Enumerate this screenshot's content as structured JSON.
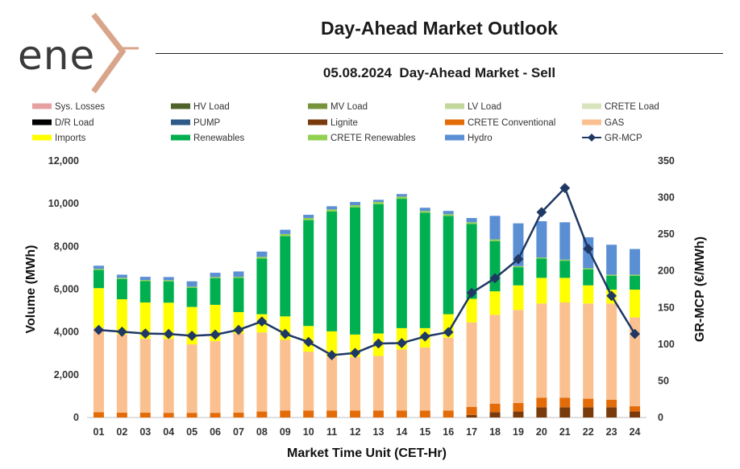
{
  "header": {
    "logo_text": "ene",
    "title": "Day-Ahead Market Outlook",
    "subtitle": "05.08.2024  Day-Ahead Market - Sell"
  },
  "chart_data": {
    "type": "bar",
    "stacked": true,
    "xlabel": "Market Time Unit (CET-Hr)",
    "ylabel": "Volume (MWh)",
    "y2label": "GR-MCP (€/MWh)",
    "ylim": [
      0,
      12000
    ],
    "y2lim": [
      0,
      350
    ],
    "yticks": [
      "0",
      "2,000",
      "4,000",
      "6,000",
      "8,000",
      "10,000",
      "12,000"
    ],
    "y2ticks": [
      "0",
      "50",
      "100",
      "150",
      "200",
      "250",
      "300",
      "350"
    ],
    "categories": [
      "01",
      "02",
      "03",
      "04",
      "05",
      "06",
      "07",
      "08",
      "09",
      "10",
      "11",
      "12",
      "13",
      "14",
      "15",
      "16",
      "17",
      "18",
      "19",
      "20",
      "21",
      "22",
      "23",
      "24"
    ],
    "series": [
      {
        "name": "Sys. Losses",
        "kind": "bar",
        "color": "#e6a0a0",
        "values": [
          0,
          0,
          0,
          0,
          0,
          0,
          0,
          0,
          0,
          0,
          0,
          0,
          0,
          0,
          0,
          0,
          0,
          0,
          0,
          0,
          0,
          0,
          0,
          0
        ]
      },
      {
        "name": "HV Load",
        "kind": "bar",
        "color": "#4f6228",
        "values": [
          0,
          0,
          0,
          0,
          0,
          0,
          0,
          0,
          0,
          0,
          0,
          0,
          0,
          0,
          0,
          0,
          0,
          0,
          0,
          0,
          0,
          0,
          0,
          0
        ]
      },
      {
        "name": "MV Load",
        "kind": "bar",
        "color": "#77933c",
        "values": [
          0,
          0,
          0,
          0,
          0,
          0,
          0,
          0,
          0,
          0,
          0,
          0,
          0,
          0,
          0,
          0,
          0,
          0,
          0,
          0,
          0,
          0,
          0,
          0
        ]
      },
      {
        "name": "LV Load",
        "kind": "bar",
        "color": "#c3d69b",
        "values": [
          0,
          0,
          0,
          0,
          0,
          0,
          0,
          0,
          0,
          0,
          0,
          0,
          0,
          0,
          0,
          0,
          0,
          0,
          0,
          0,
          0,
          0,
          0,
          0
        ]
      },
      {
        "name": "CRETE Load",
        "kind": "bar",
        "color": "#d7e4bd",
        "values": [
          0,
          0,
          0,
          0,
          0,
          0,
          0,
          0,
          0,
          0,
          0,
          0,
          0,
          0,
          0,
          0,
          0,
          0,
          0,
          0,
          0,
          0,
          0,
          0
        ]
      },
      {
        "name": "D/R Load",
        "kind": "bar",
        "color": "#000000",
        "values": [
          0,
          0,
          0,
          0,
          0,
          0,
          0,
          0,
          0,
          0,
          0,
          0,
          0,
          0,
          0,
          0,
          0,
          0,
          0,
          0,
          0,
          0,
          0,
          0
        ]
      },
      {
        "name": "PUMP",
        "kind": "bar",
        "color": "#2e5a8a",
        "values": [
          0,
          0,
          0,
          0,
          0,
          0,
          0,
          0,
          0,
          0,
          0,
          0,
          0,
          0,
          0,
          0,
          0,
          0,
          0,
          0,
          0,
          0,
          0,
          0
        ]
      },
      {
        "name": "Lignite",
        "kind": "bar",
        "color": "#7a3b0c",
        "values": [
          0,
          0,
          0,
          0,
          0,
          0,
          0,
          0,
          0,
          0,
          0,
          0,
          0,
          0,
          0,
          0,
          120,
          250,
          280,
          480,
          480,
          480,
          480,
          280
        ]
      },
      {
        "name": "CRETE Conventional",
        "kind": "bar",
        "color": "#e36c09",
        "values": [
          250,
          230,
          230,
          220,
          220,
          220,
          230,
          280,
          330,
          330,
          330,
          330,
          330,
          330,
          330,
          330,
          380,
          400,
          400,
          450,
          450,
          400,
          350,
          250
        ]
      },
      {
        "name": "GAS",
        "kind": "bar",
        "color": "#fac090",
        "values": [
          3950,
          3650,
          3450,
          3450,
          3200,
          3350,
          3700,
          3700,
          3300,
          2750,
          2500,
          2500,
          2550,
          2850,
          2950,
          3400,
          3950,
          4150,
          4350,
          4400,
          4450,
          4450,
          4500,
          4150
        ]
      },
      {
        "name": "Imports",
        "kind": "bar",
        "color": "#ffff00",
        "values": [
          1850,
          1650,
          1700,
          1700,
          1750,
          1700,
          1000,
          850,
          1100,
          1200,
          1200,
          1050,
          1050,
          1000,
          900,
          1100,
          1100,
          1100,
          1150,
          1200,
          1150,
          850,
          650,
          1300
        ]
      },
      {
        "name": "Renewables",
        "kind": "bar",
        "color": "#00b050",
        "values": [
          850,
          950,
          1000,
          1000,
          900,
          1250,
          1600,
          2600,
          3750,
          4950,
          5600,
          5950,
          6050,
          6050,
          5400,
          4600,
          3500,
          2350,
          850,
          900,
          800,
          750,
          650,
          650
        ]
      },
      {
        "name": "CRETE Renewables",
        "kind": "bar",
        "color": "#92d050",
        "values": [
          50,
          50,
          50,
          50,
          50,
          50,
          50,
          80,
          100,
          100,
          100,
          100,
          100,
          100,
          80,
          80,
          80,
          80,
          50,
          50,
          50,
          50,
          50,
          50
        ]
      },
      {
        "name": "Hydro",
        "kind": "bar",
        "color": "#5b8fd4",
        "values": [
          150,
          150,
          150,
          150,
          250,
          200,
          250,
          250,
          200,
          150,
          150,
          150,
          100,
          120,
          150,
          150,
          200,
          1100,
          2000,
          1700,
          1750,
          1450,
          1400,
          1200
        ]
      },
      {
        "name": "GR-MCP",
        "kind": "line",
        "color": "#1f3864",
        "values": [
          119.5,
          117,
          114.5,
          114,
          111.5,
          113,
          119.5,
          131,
          114,
          103,
          85,
          88,
          101,
          101.5,
          110.5,
          116.5,
          170,
          190,
          216,
          280,
          313,
          230,
          166,
          114
        ]
      }
    ]
  }
}
